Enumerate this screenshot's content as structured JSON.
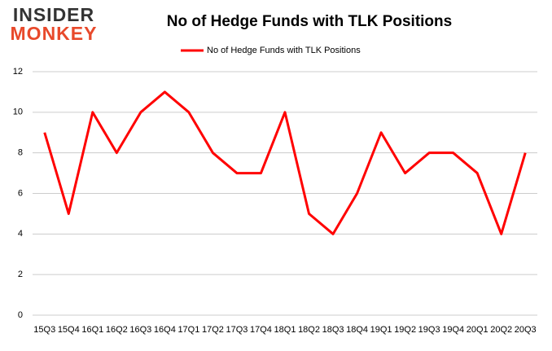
{
  "logo": {
    "top": "INSIDER",
    "bottom": "MONKEY"
  },
  "chart_data": {
    "type": "line",
    "title": "No of Hedge Funds with TLK Positions",
    "categories": [
      "15Q3",
      "15Q4",
      "16Q1",
      "16Q2",
      "16Q3",
      "16Q4",
      "17Q1",
      "17Q2",
      "17Q3",
      "17Q4",
      "18Q1",
      "18Q2",
      "18Q3",
      "18Q4",
      "19Q1",
      "19Q2",
      "19Q3",
      "19Q4",
      "20Q1",
      "20Q2",
      "20Q3"
    ],
    "series": [
      {
        "name": "No of Hedge Funds with TLK Positions",
        "color": "#ff0000",
        "values": [
          9,
          5,
          10,
          8,
          10,
          11,
          10,
          8,
          7,
          7,
          10,
          5,
          4,
          6,
          9,
          7,
          8,
          8,
          7,
          4,
          8
        ]
      }
    ],
    "ylim": [
      0,
      12
    ],
    "yticks": [
      0,
      2,
      4,
      6,
      8,
      10,
      12
    ],
    "grid": true,
    "legend": "top"
  }
}
